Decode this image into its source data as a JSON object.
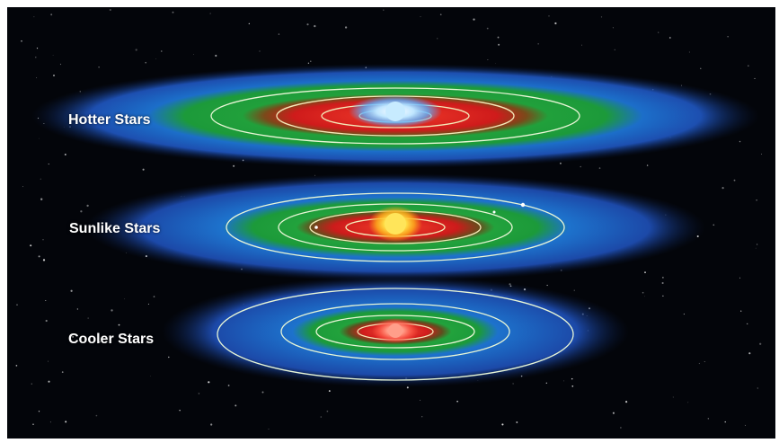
{
  "labels": {
    "hotter": "Hotter Stars",
    "sunlike": "Sunlike Stars",
    "cooler": "Cooler Stars"
  },
  "systems": [
    {
      "key": "hotter",
      "star_color": "#9fd8ff",
      "zone_colors": {
        "hot": "#d21c1c",
        "habitable": "#1fa13a",
        "cold": "#1f63d6"
      }
    },
    {
      "key": "sunlike",
      "star_color": "#ffd83a",
      "zone_colors": {
        "hot": "#d21c1c",
        "habitable": "#1fa13a",
        "cold": "#1f63d6"
      }
    },
    {
      "key": "cooler",
      "star_color": "#ff8a6a",
      "zone_colors": {
        "hot": "#d21c1c",
        "habitable": "#1fa13a",
        "cold": "#1f63d6"
      }
    }
  ],
  "colors": {
    "space": "#03050a",
    "orbit": "#e8f6d6",
    "label": "#ffffff"
  }
}
